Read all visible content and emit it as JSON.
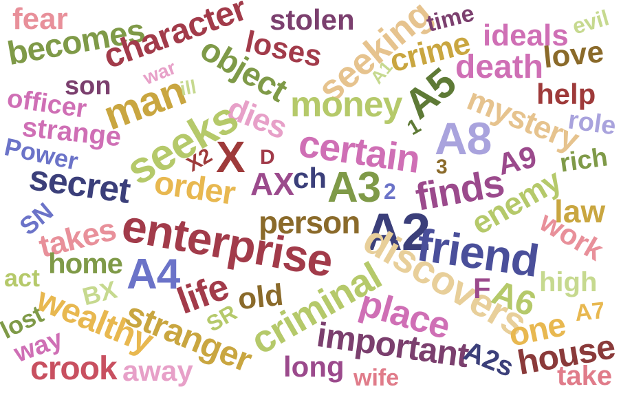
{
  "words": {
    "fear": "fear",
    "becomes": "becomes",
    "character": "character",
    "stolen": "stolen",
    "loses": "loses",
    "seeking": "seeking",
    "time": "time",
    "crime": "crime",
    "ideals": "ideals",
    "evil": "evil",
    "love": "love",
    "war": "war",
    "object": "object",
    "son": "son",
    "man": "man",
    "ill": "ill",
    "A1": "A1",
    "A5": "A5",
    "death": "death",
    "officer": "officer",
    "help": "help",
    "dies": "dies",
    "money": "money",
    "mystery": "mystery",
    "strange": "strange",
    "seeks": "seeks",
    "n1": "1",
    "A8": "A8",
    "role": "role",
    "Power": "Power",
    "X2": "X2",
    "X": "X",
    "D": "D",
    "certain": "certain",
    "n3": "3",
    "A9": "A9",
    "rich": "rich",
    "secret": "secret",
    "order": "order",
    "AX": "AX",
    "ch": "ch",
    "A3": "A3",
    "n2": "2",
    "finds": "finds",
    "enemy": "enemy",
    "law": "law",
    "SN": "SN",
    "person": "person",
    "takes": "takes",
    "enterprise": "enterprise",
    "A2": "A2",
    "work": "work",
    "friend": "friend",
    "home": "home",
    "A4": "A4",
    "act": "act",
    "discovers": "discovers",
    "high": "high",
    "life": "life",
    "BX": "BX",
    "F": "F",
    "A6": "A6",
    "old": "old",
    "criminal": "criminal",
    "lost": "lost",
    "wealthy": "wealthy",
    "SR": "SR",
    "place": "place",
    "A7": "A7",
    "stranger": "stranger",
    "one": "one",
    "way": "way",
    "important": "important",
    "house": "house",
    "crook": "crook",
    "away": "away",
    "long": "long",
    "A2s": "A2s",
    "wife": "wife",
    "take": "take"
  },
  "colors": {
    "pink": "#e8909a",
    "olive": "#7f9a48",
    "maroon": "#a23b4a",
    "plum": "#7b3f6e",
    "tan": "#e6c38e",
    "gold": "#d9b24a",
    "orchid": "#cf6fb5",
    "lime": "#c6d98f",
    "brown": "#8a6a2a",
    "sage": "#b5c96a",
    "navy": "#3b3f7a",
    "periwinkle": "#6b73c8",
    "lavender": "#a9a3dd",
    "darkolive": "#5e7a36",
    "crimson": "#9e3a3a",
    "rose": "#e07c8a",
    "violet": "#9b4a8c",
    "mustard": "#c9a640",
    "cream": "#e8cf9a",
    "grape": "#7d3f7a",
    "lightpink": "#e7a0c8"
  }
}
